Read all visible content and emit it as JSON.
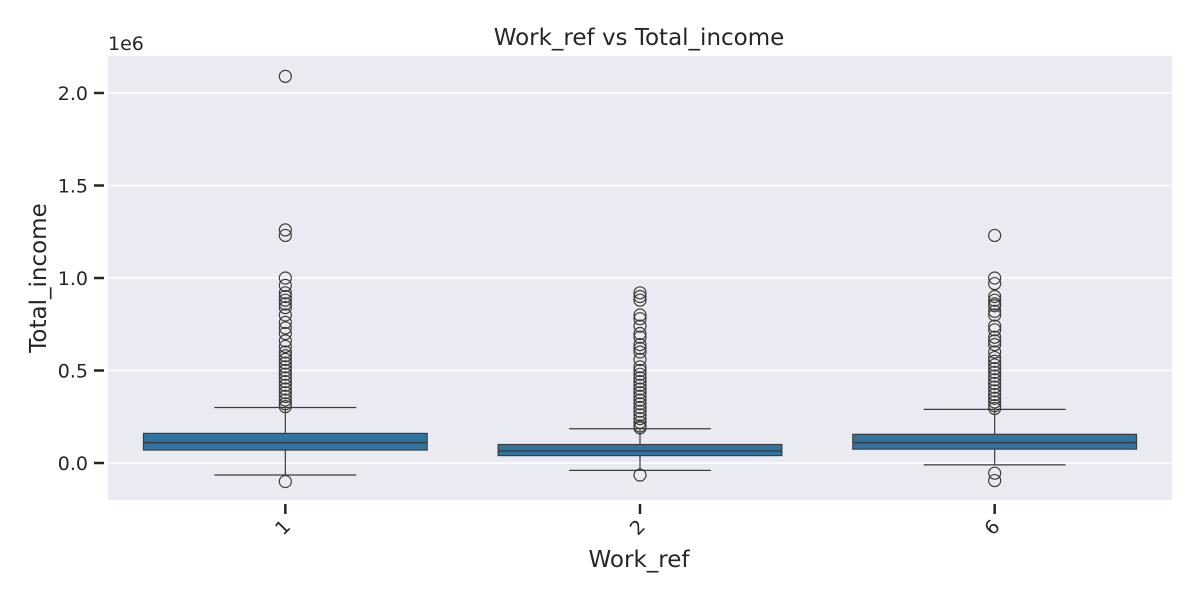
{
  "chart_data": {
    "type": "box",
    "title": "Work_ref vs Total_income",
    "xlabel": "Work_ref",
    "ylabel": "Total_income",
    "y_offset_label": "1e6",
    "y_scale": 1000000,
    "ylim": [
      -200000,
      2200000
    ],
    "yticks": [
      0.0,
      0.5,
      1.0,
      1.5,
      2.0
    ],
    "ytick_labels": [
      "0.0",
      "0.5",
      "1.0",
      "1.5",
      "2.0"
    ],
    "grid": true,
    "colors": {
      "background": "#eaeaf2",
      "box": "#3274a1",
      "line": "#3d3d3d",
      "grid": "#ffffff"
    },
    "categories": [
      "1",
      "2",
      "6"
    ],
    "boxes": [
      {
        "category": "1",
        "q1": 70000,
        "median": 110000,
        "q3": 160000,
        "whisker_low": -65000,
        "whisker_high": 300000,
        "outliers": [
          2090000,
          1260000,
          1230000,
          1000000,
          960000,
          920000,
          900000,
          880000,
          860000,
          840000,
          800000,
          760000,
          730000,
          700000,
          660000,
          630000,
          600000,
          580000,
          560000,
          540000,
          520000,
          500000,
          480000,
          460000,
          440000,
          420000,
          400000,
          380000,
          360000,
          340000,
          320000,
          305000,
          -100000
        ]
      },
      {
        "category": "2",
        "q1": 40000,
        "median": 65000,
        "q3": 100000,
        "whisker_low": -40000,
        "whisker_high": 185000,
        "outliers": [
          920000,
          900000,
          880000,
          800000,
          780000,
          740000,
          700000,
          680000,
          640000,
          620000,
          600000,
          560000,
          520000,
          500000,
          480000,
          460000,
          440000,
          420000,
          400000,
          380000,
          360000,
          340000,
          320000,
          300000,
          280000,
          260000,
          240000,
          220000,
          200000,
          190000,
          -65000
        ]
      },
      {
        "category": "6",
        "q1": 75000,
        "median": 110000,
        "q3": 155000,
        "whisker_low": -10000,
        "whisker_high": 290000,
        "outliers": [
          1230000,
          1000000,
          970000,
          900000,
          880000,
          860000,
          850000,
          820000,
          800000,
          740000,
          720000,
          680000,
          660000,
          640000,
          600000,
          570000,
          550000,
          530000,
          510000,
          490000,
          470000,
          450000,
          430000,
          410000,
          390000,
          370000,
          350000,
          330000,
          310000,
          295000,
          -55000,
          -95000
        ]
      }
    ]
  }
}
